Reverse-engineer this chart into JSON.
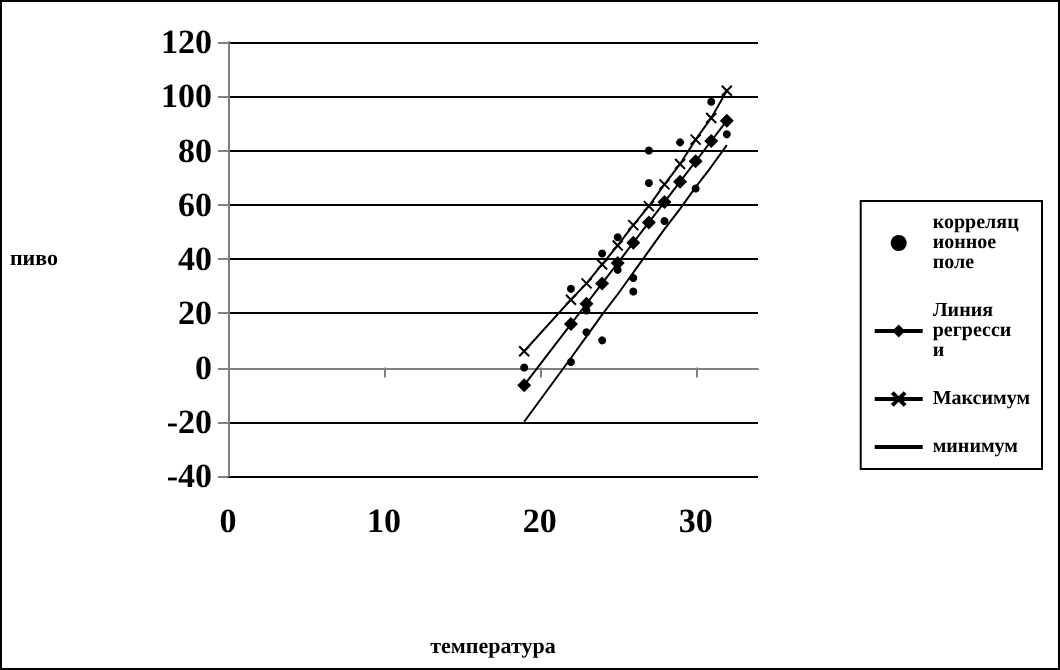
{
  "chart_data": {
    "type": "scatter",
    "xlabel": "температура",
    "ylabel": "пиво",
    "xlim": [
      0,
      34
    ],
    "xticks": [
      0,
      10,
      20,
      30
    ],
    "ylim": [
      -40,
      120
    ],
    "yticks": [
      -40,
      -20,
      0,
      20,
      40,
      60,
      80,
      100,
      120
    ],
    "grid": "y",
    "legend": "right",
    "series": [
      {
        "name": "корреляционное поле",
        "marker": "circle",
        "color": "#000000",
        "x": [
          19,
          22,
          22,
          23,
          23,
          24,
          24,
          25,
          25,
          26,
          26,
          27,
          27,
          28,
          29,
          30,
          31,
          32
        ],
        "values": [
          0,
          29,
          2,
          21,
          13,
          42,
          10,
          48,
          36,
          33,
          28,
          80,
          68,
          54,
          83,
          66,
          98,
          86
        ]
      },
      {
        "name": "Линия регрессии",
        "type": "line",
        "marker": "diamond",
        "color": "#000000",
        "x": [
          19,
          22,
          23,
          24,
          25,
          26,
          27,
          28,
          29,
          30,
          31,
          32
        ],
        "values": [
          -6.5,
          16,
          23.5,
          31,
          38.5,
          46,
          53.5,
          61,
          68.5,
          76,
          83.5,
          91
        ]
      },
      {
        "name": "Максимум",
        "type": "line",
        "marker": "cross",
        "color": "#000000",
        "x": [
          19,
          22,
          23,
          24,
          25,
          26,
          27,
          28,
          29,
          30,
          31,
          32
        ],
        "values": [
          6,
          25,
          31,
          38,
          45,
          52.5,
          59.5,
          67.5,
          75,
          84,
          92,
          102
        ]
      },
      {
        "name": "минимум",
        "type": "line",
        "marker": "none",
        "color": "#000000",
        "x": [
          19,
          22,
          23,
          24,
          25,
          26,
          27,
          28,
          29,
          30,
          31,
          32
        ],
        "values": [
          -20,
          3.5,
          11.5,
          19.5,
          27,
          35,
          43,
          51,
          58.5,
          66.5,
          74,
          82
        ]
      }
    ]
  }
}
